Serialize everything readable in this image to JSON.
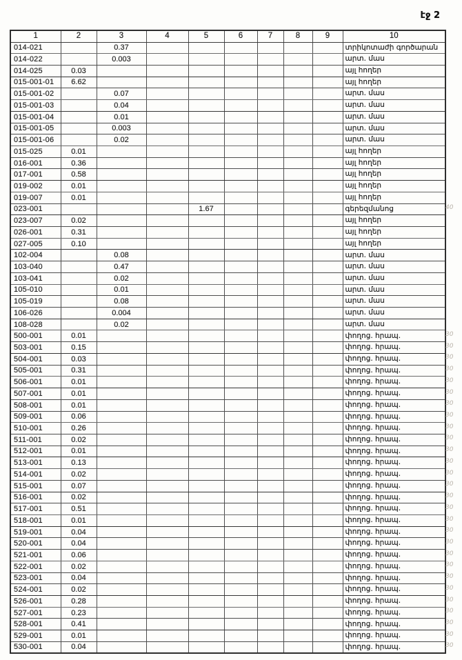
{
  "page_label": "էջ 2",
  "table": {
    "headers": [
      "1",
      "2",
      "3",
      "4",
      "5",
      "6",
      "7",
      "8",
      "9",
      "10"
    ],
    "rows": [
      {
        "code": "014-021",
        "col": 3,
        "val": "0.37",
        "type": "տրիկոտաժի գործարան"
      },
      {
        "code": "014-022",
        "col": 3,
        "val": "0.003",
        "type": "արտ. մաս"
      },
      {
        "code": "014-025",
        "col": 2,
        "val": "0.03",
        "type": "այլ հողեր"
      },
      {
        "code": "015-001-01",
        "col": 2,
        "val": "6.62",
        "type": "այլ հողեր"
      },
      {
        "code": "015-001-02",
        "col": 3,
        "val": "0.07",
        "type": "արտ. մաս"
      },
      {
        "code": "015-001-03",
        "col": 3,
        "val": "0.04",
        "type": "արտ. մաս"
      },
      {
        "code": "015-001-04",
        "col": 3,
        "val": "0.01",
        "type": "արտ. մաս"
      },
      {
        "code": "015-001-05",
        "col": 3,
        "val": "0.003",
        "type": "արտ. մաս"
      },
      {
        "code": "015-001-06",
        "col": 3,
        "val": "0.02",
        "type": "արտ. մաս"
      },
      {
        "code": "015-025",
        "col": 2,
        "val": "0.01",
        "type": "այլ հողեր"
      },
      {
        "code": "016-001",
        "col": 2,
        "val": "0.36",
        "type": "այլ հողեր"
      },
      {
        "code": "017-001",
        "col": 2,
        "val": "0.58",
        "type": "այլ հողեր"
      },
      {
        "code": "019-002",
        "col": 2,
        "val": "0.01",
        "type": "այլ հողեր"
      },
      {
        "code": "019-007",
        "col": 2,
        "val": "0.01",
        "type": "այլ հողեր"
      },
      {
        "code": "023-001",
        "col": 5,
        "val": "1.67",
        "type": "գերեզմանոց"
      },
      {
        "code": "023-007",
        "col": 2,
        "val": "0.02",
        "type": "այլ հողեր"
      },
      {
        "code": "026-001",
        "col": 2,
        "val": "0.31",
        "type": "այլ հողեր"
      },
      {
        "code": "027-005",
        "col": 2,
        "val": "0.10",
        "type": "այլ հողեր"
      },
      {
        "code": "102-004",
        "col": 3,
        "val": "0.08",
        "type": "արտ. մաս"
      },
      {
        "code": "103-040",
        "col": 3,
        "val": "0.47",
        "type": "արտ. մաս"
      },
      {
        "code": "103-041",
        "col": 3,
        "val": "0.02",
        "type": "արտ. մաս"
      },
      {
        "code": "105-010",
        "col": 3,
        "val": "0.01",
        "type": "արտ. մաս"
      },
      {
        "code": "105-019",
        "col": 3,
        "val": "0.08",
        "type": "արտ. մաս"
      },
      {
        "code": "106-026",
        "col": 3,
        "val": "0.004",
        "type": "արտ. մաս"
      },
      {
        "code": "108-028",
        "col": 3,
        "val": "0.02",
        "type": "արտ. մաս"
      },
      {
        "code": "500-001",
        "col": 2,
        "val": "0.01",
        "type": "փողոց. հրապ."
      },
      {
        "code": "503-001",
        "col": 2,
        "val": "0.15",
        "type": "փողոց. հրապ."
      },
      {
        "code": "504-001",
        "col": 2,
        "val": "0.03",
        "type": "փողոց. հրապ."
      },
      {
        "code": "505-001",
        "col": 2,
        "val": "0.31",
        "type": "փողոց. հրապ."
      },
      {
        "code": "506-001",
        "col": 2,
        "val": "0.01",
        "type": "փողոց. հրապ."
      },
      {
        "code": "507-001",
        "col": 2,
        "val": "0.01",
        "type": "փողոց. հրապ."
      },
      {
        "code": "508-001",
        "col": 2,
        "val": "0.01",
        "type": "փողոց. հրապ."
      },
      {
        "code": "509-001",
        "col": 2,
        "val": "0.06",
        "type": "փողոց. հրապ."
      },
      {
        "code": "510-001",
        "col": 2,
        "val": "0.26",
        "type": "փողոց. հրապ."
      },
      {
        "code": "511-001",
        "col": 2,
        "val": "0.02",
        "type": "փողոց. հրապ."
      },
      {
        "code": "512-001",
        "col": 2,
        "val": "0.01",
        "type": "փողոց. հրապ."
      },
      {
        "code": "513-001",
        "col": 2,
        "val": "0.13",
        "type": "փողոց. հրապ."
      },
      {
        "code": "514-001",
        "col": 2,
        "val": "0.02",
        "type": "փողոց. հրապ."
      },
      {
        "code": "515-001",
        "col": 2,
        "val": "0.07",
        "type": "փողոց. հրապ."
      },
      {
        "code": "516-001",
        "col": 2,
        "val": "0.02",
        "type": "փողոց. հրապ."
      },
      {
        "code": "517-001",
        "col": 2,
        "val": "0.51",
        "type": "փողոց. հրապ."
      },
      {
        "code": "518-001",
        "col": 2,
        "val": "0.01",
        "type": "փողոց. հրապ."
      },
      {
        "code": "519-001",
        "col": 2,
        "val": "0.04",
        "type": "փողոց. հրապ."
      },
      {
        "code": "520-001",
        "col": 2,
        "val": "0.04",
        "type": "փողոց. հրապ."
      },
      {
        "code": "521-001",
        "col": 2,
        "val": "0.06",
        "type": "փողոց. հրապ."
      },
      {
        "code": "522-001",
        "col": 2,
        "val": "0.02",
        "type": "փողոց. հրապ."
      },
      {
        "code": "523-001",
        "col": 2,
        "val": "0.04",
        "type": "փողոց. հրապ."
      },
      {
        "code": "524-001",
        "col": 2,
        "val": "0.02",
        "type": "փողոց. հրապ."
      },
      {
        "code": "526-001",
        "col": 2,
        "val": "0.28",
        "type": "փողոց. հրապ."
      },
      {
        "code": "527-001",
        "col": 2,
        "val": "0.23",
        "type": "փողոց. հրապ."
      },
      {
        "code": "528-001",
        "col": 2,
        "val": "0.41",
        "type": "փողոց. հրապ."
      },
      {
        "code": "529-001",
        "col": 2,
        "val": "0.01",
        "type": "փողոց. հրապ."
      },
      {
        "code": "530-001",
        "col": 2,
        "val": "0.04",
        "type": "փողոց. հրապ."
      }
    ]
  },
  "margin_marks": [
    {
      "row": 14,
      "text": "40"
    },
    {
      "row": 25,
      "text": "30"
    },
    {
      "row": 26,
      "text": "30"
    },
    {
      "row": 27,
      "text": "30"
    },
    {
      "row": 28,
      "text": "30"
    },
    {
      "row": 29,
      "text": "30"
    },
    {
      "row": 30,
      "text": "30"
    },
    {
      "row": 31,
      "text": "30"
    },
    {
      "row": 32,
      "text": "30"
    },
    {
      "row": 33,
      "text": "30"
    },
    {
      "row": 34,
      "text": "30"
    },
    {
      "row": 35,
      "text": "30"
    },
    {
      "row": 36,
      "text": "30"
    },
    {
      "row": 37,
      "text": "30"
    },
    {
      "row": 38,
      "text": "30"
    },
    {
      "row": 39,
      "text": "30"
    },
    {
      "row": 40,
      "text": "30"
    },
    {
      "row": 41,
      "text": "30"
    },
    {
      "row": 42,
      "text": "30"
    },
    {
      "row": 43,
      "text": "30"
    },
    {
      "row": 44,
      "text": "30"
    },
    {
      "row": 45,
      "text": "30"
    },
    {
      "row": 46,
      "text": "30"
    },
    {
      "row": 47,
      "text": "30"
    },
    {
      "row": 48,
      "text": "30"
    },
    {
      "row": 49,
      "text": "30"
    },
    {
      "row": 50,
      "text": "30"
    },
    {
      "row": 51,
      "text": "30"
    },
    {
      "row": 52,
      "text": "30"
    }
  ]
}
